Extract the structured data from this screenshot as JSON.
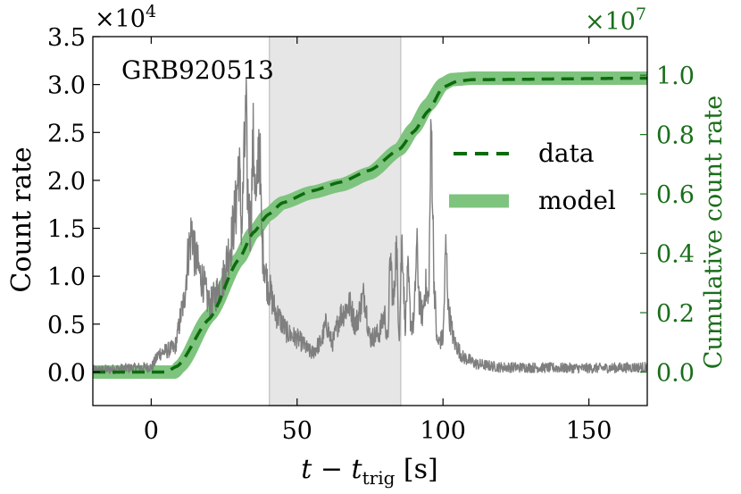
{
  "chart_data": {
    "type": "line",
    "annotation": "GRB920513",
    "xlabel_main": "t − t",
    "xlabel_sub": "trig",
    "xlabel_unit": " [s]",
    "ylabel_left": "Count rate",
    "ylabel_right": "Cumulative count rate",
    "left_multiplier_base": "×10",
    "left_multiplier_exp": "4",
    "right_multiplier_base": "×10",
    "right_multiplier_exp": "7",
    "xlim": [
      -20,
      170
    ],
    "ylim_left": [
      -0.35,
      3.5
    ],
    "ylim_right": [
      -0.113,
      1.13
    ],
    "x_ticks": [
      0,
      50,
      100,
      150
    ],
    "x_tick_labels": [
      "0",
      "50",
      "100",
      "150"
    ],
    "y_left_ticks": [
      0.0,
      0.5,
      1.0,
      1.5,
      2.0,
      2.5,
      3.0,
      3.5
    ],
    "y_left_tick_labels": [
      "0.0",
      "0.5",
      "1.0",
      "1.5",
      "2.0",
      "2.5",
      "3.0",
      "3.5"
    ],
    "y_right_ticks": [
      0.0,
      0.2,
      0.4,
      0.6,
      0.8,
      1.0
    ],
    "y_right_tick_labels": [
      "0.0",
      "0.2",
      "0.4",
      "0.6",
      "0.8",
      "1.0"
    ],
    "shaded_region": [
      40.5,
      85.5
    ],
    "legend": [
      {
        "label": "data",
        "style": "dashed",
        "color": "#0d6b0d"
      },
      {
        "label": "model",
        "style": "band",
        "color": "#7ec47e"
      }
    ],
    "colors": {
      "light_curve": "#7f7f7f",
      "data": "#0d6b0d",
      "model": "#7ec47e",
      "shade": "#e6e6e6",
      "right_axis": "#1a6e1a"
    },
    "series": [
      {
        "name": "light curve",
        "axis": "left",
        "keypoints": [
          [
            -20,
            0.02
          ],
          [
            0,
            0.05
          ],
          [
            3,
            0.2
          ],
          [
            8,
            0.25
          ],
          [
            11,
            0.7
          ],
          [
            13,
            1.3
          ],
          [
            14,
            1.5
          ],
          [
            15,
            1.2
          ],
          [
            17,
            1.0
          ],
          [
            20,
            0.7
          ],
          [
            24,
            0.9
          ],
          [
            27,
            1.3
          ],
          [
            29,
            1.7
          ],
          [
            30,
            2.2
          ],
          [
            31,
            1.5
          ],
          [
            32,
            2.3
          ],
          [
            32.5,
            2.7
          ],
          [
            33,
            1.9
          ],
          [
            34,
            1.5
          ],
          [
            35,
            2.4
          ],
          [
            36,
            1.7
          ],
          [
            37,
            2.5
          ],
          [
            38,
            1.3
          ],
          [
            40,
            0.9
          ],
          [
            43,
            0.6
          ],
          [
            47,
            0.4
          ],
          [
            50,
            0.35
          ],
          [
            55,
            0.2
          ],
          [
            58,
            0.3
          ],
          [
            60,
            0.5
          ],
          [
            62,
            0.3
          ],
          [
            65,
            0.6
          ],
          [
            68,
            0.7
          ],
          [
            70,
            0.5
          ],
          [
            73,
            0.8
          ],
          [
            75,
            0.35
          ],
          [
            78,
            0.4
          ],
          [
            80,
            0.6
          ],
          [
            81,
            0.3
          ],
          [
            82,
            1.2
          ],
          [
            83,
            0.7
          ],
          [
            84,
            1.3
          ],
          [
            85,
            0.4
          ],
          [
            86,
            1.4
          ],
          [
            87,
            0.5
          ],
          [
            88,
            1.0
          ],
          [
            89,
            0.5
          ],
          [
            90,
            0.5
          ],
          [
            91,
            1.3
          ],
          [
            92,
            0.7
          ],
          [
            93,
            0.6
          ],
          [
            94,
            0.9
          ],
          [
            95,
            0.7
          ],
          [
            96,
            2.55
          ],
          [
            97,
            0.9
          ],
          [
            98,
            0.3
          ],
          [
            100,
            0.35
          ],
          [
            101,
            1.3
          ],
          [
            102,
            0.6
          ],
          [
            104,
            0.3
          ],
          [
            107,
            0.15
          ],
          [
            112,
            0.08
          ],
          [
            120,
            0.05
          ],
          [
            150,
            0.04
          ],
          [
            170,
            0.05
          ]
        ]
      },
      {
        "name": "data",
        "axis": "right",
        "keypoints": [
          [
            -20,
            0.0
          ],
          [
            5,
            0.0
          ],
          [
            9,
            0.02
          ],
          [
            20,
            0.18
          ],
          [
            30,
            0.38
          ],
          [
            35,
            0.47
          ],
          [
            40,
            0.53
          ],
          [
            45,
            0.57
          ],
          [
            55,
            0.61
          ],
          [
            65,
            0.64
          ],
          [
            75,
            0.68
          ],
          [
            85,
            0.75
          ],
          [
            90,
            0.81
          ],
          [
            95,
            0.88
          ],
          [
            100,
            0.96
          ],
          [
            105,
            0.98
          ],
          [
            110,
            0.985
          ],
          [
            170,
            0.99
          ]
        ]
      },
      {
        "name": "model",
        "axis": "right",
        "keypoints": [
          [
            -20,
            0.0
          ],
          [
            8,
            0.0
          ],
          [
            10,
            0.02
          ],
          [
            20,
            0.19
          ],
          [
            30,
            0.38
          ],
          [
            35,
            0.47
          ],
          [
            40,
            0.53
          ],
          [
            45,
            0.57
          ],
          [
            55,
            0.605
          ],
          [
            65,
            0.63
          ],
          [
            75,
            0.67
          ],
          [
            85,
            0.75
          ],
          [
            90,
            0.82
          ],
          [
            95,
            0.9
          ],
          [
            100,
            0.97
          ],
          [
            103,
            0.985
          ],
          [
            110,
            0.99
          ],
          [
            170,
            0.99
          ]
        ]
      }
    ]
  }
}
